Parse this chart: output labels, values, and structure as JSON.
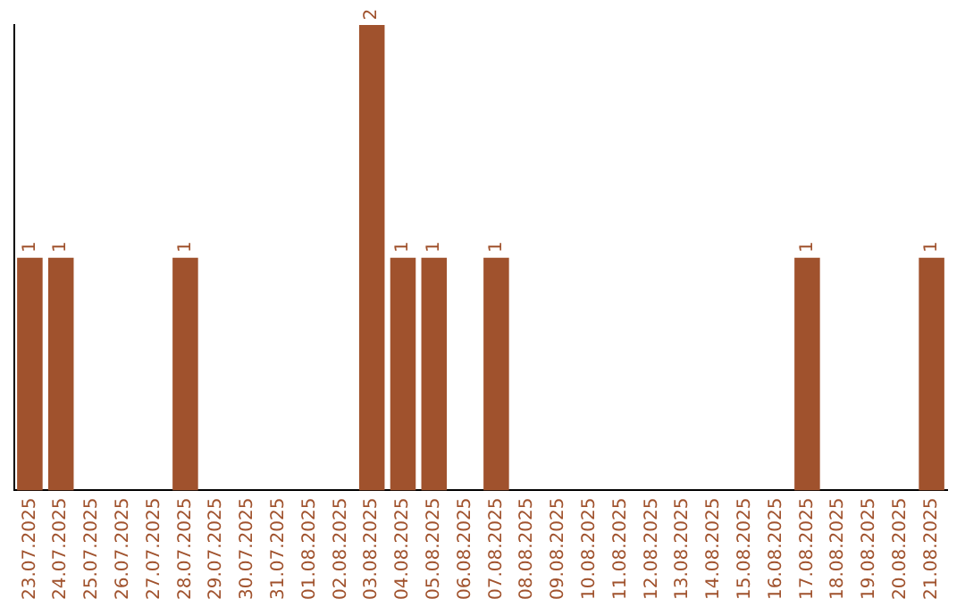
{
  "chart_data": {
    "type": "bar",
    "categories": [
      "23.07.2025",
      "24.07.2025",
      "25.07.2025",
      "26.07.2025",
      "27.07.2025",
      "28.07.2025",
      "29.07.2025",
      "30.07.2025",
      "31.07.2025",
      "01.08.2025",
      "02.08.2025",
      "03.08.2025",
      "04.08.2025",
      "05.08.2025",
      "06.08.2025",
      "07.08.2025",
      "08.08.2025",
      "09.08.2025",
      "10.08.2025",
      "11.08.2025",
      "12.08.2025",
      "13.08.2025",
      "14.08.2025",
      "15.08.2025",
      "16.08.2025",
      "17.08.2025",
      "18.08.2025",
      "19.08.2025",
      "20.08.2025",
      "21.08.2025"
    ],
    "values": [
      1,
      1,
      0,
      0,
      0,
      1,
      0,
      0,
      0,
      0,
      0,
      2,
      1,
      1,
      0,
      1,
      0,
      0,
      0,
      0,
      0,
      0,
      0,
      0,
      0,
      1,
      0,
      0,
      0,
      1
    ],
    "value_labels": [
      "1",
      "1",
      null,
      null,
      null,
      "1",
      null,
      null,
      null,
      null,
      null,
      "2",
      "1",
      "1",
      null,
      "1",
      null,
      null,
      null,
      null,
      null,
      null,
      null,
      null,
      null,
      "1",
      null,
      null,
      null,
      "1"
    ],
    "color": "#a0522d",
    "tick_labels": "x",
    "grid": false,
    "legend": false
  }
}
